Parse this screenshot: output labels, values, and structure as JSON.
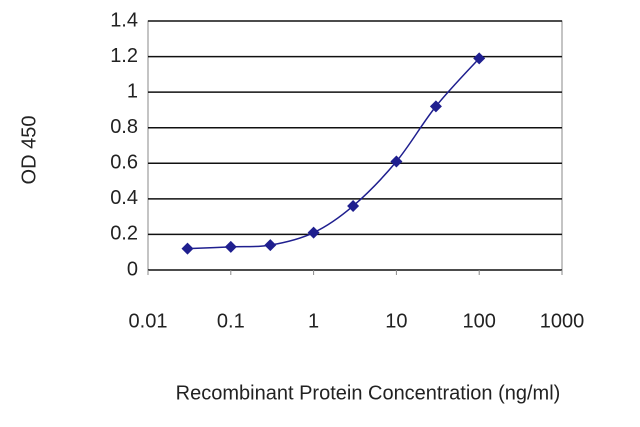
{
  "chart_data": {
    "type": "line",
    "x_label": "Recombinant Protein Concentration (ng/ml)",
    "y_label": "OD 450",
    "x": [
      0.03,
      0.1,
      0.3,
      1,
      3,
      10,
      30,
      100
    ],
    "values": [
      0.12,
      0.13,
      0.14,
      0.21,
      0.36,
      0.61,
      0.92,
      1.19
    ],
    "color": "#1f1f8f",
    "xscale": "log",
    "xlim": [
      0.01,
      1000
    ],
    "xticks": [
      0.01,
      0.1,
      1,
      10,
      100,
      1000
    ],
    "ylim": [
      0,
      1.4
    ],
    "yticks": [
      0,
      0.2,
      0.4,
      0.6,
      0.8,
      1,
      1.2,
      1.4
    ],
    "grid": true
  }
}
